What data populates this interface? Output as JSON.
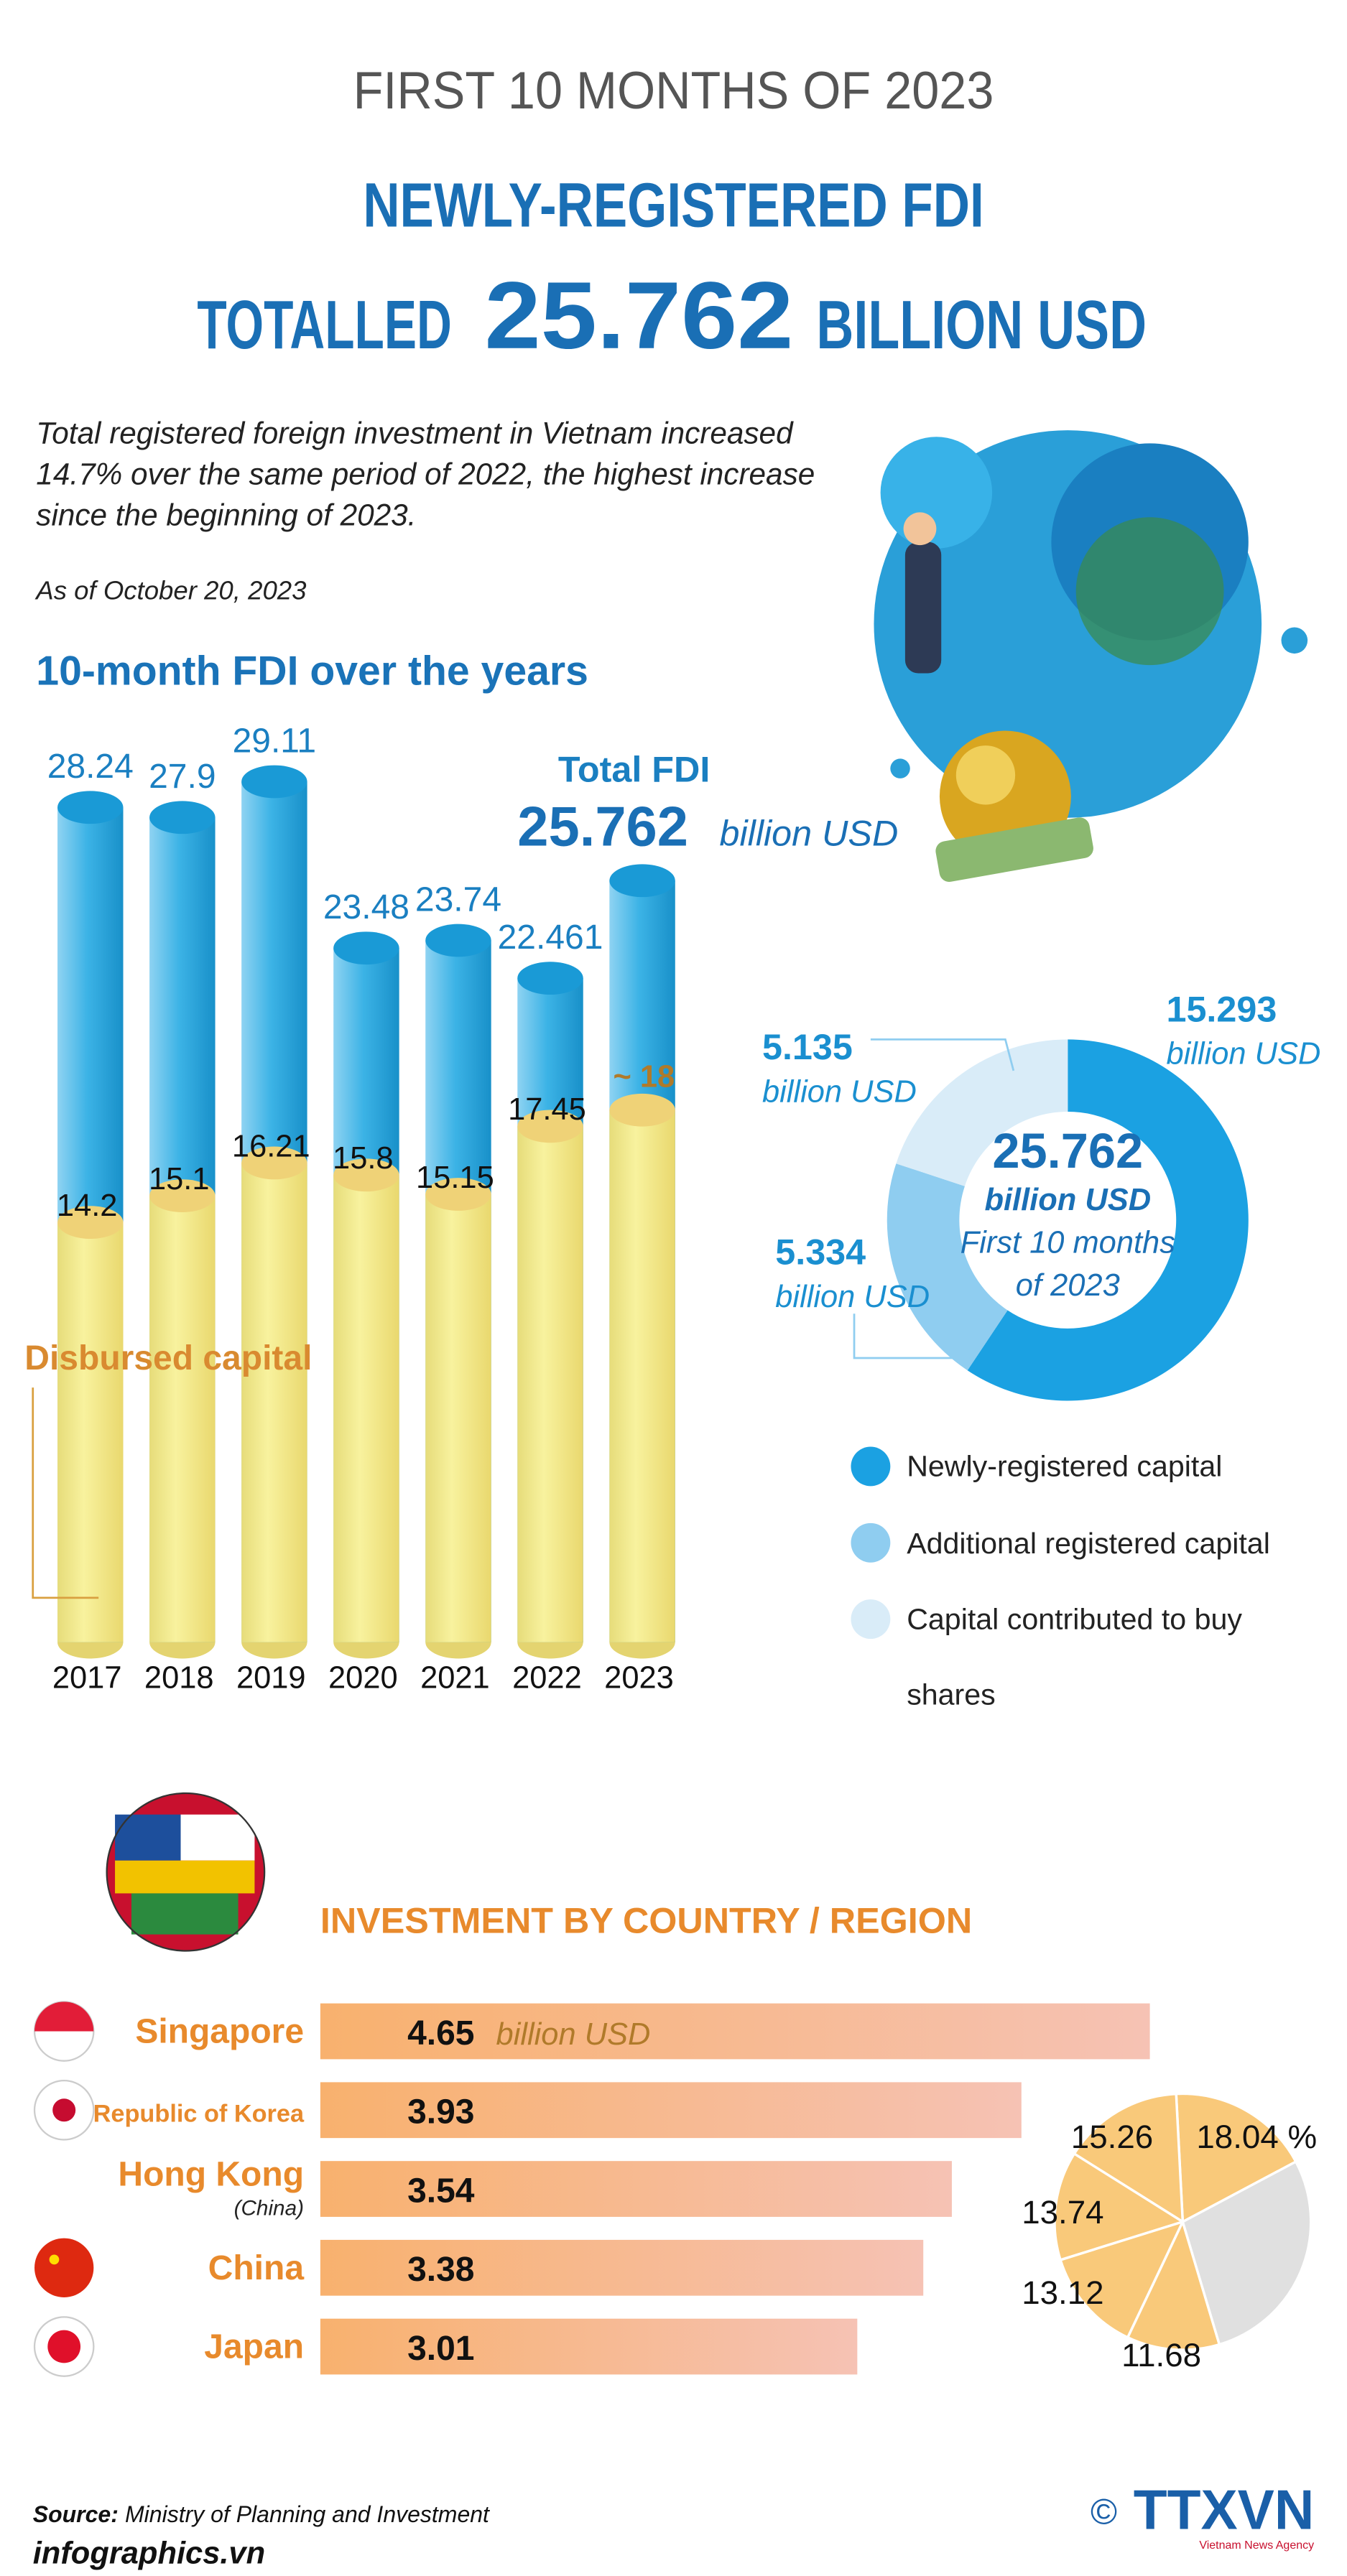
{
  "header": {
    "kicker": "FIRST 10 MONTHS OF 2023",
    "title": "NEWLY-REGISTERED FDI",
    "title_prefix": "TOTALLED",
    "title_amount": "25.762",
    "title_unit": "BILLION USD"
  },
  "intro": {
    "lines": [
      "Total registered foreign investment in Vietnam increased",
      "14.7% over the same period of 2022, the highest increase",
      "since the beginning of 2023."
    ],
    "date": "As of October 20, 2023"
  },
  "chart_data": [
    {
      "type": "cylinder",
      "title": "10-month FDI over the years",
      "categories": [
        "2017",
        "2018",
        "2019",
        "2020",
        "2021",
        "2022",
        "2023"
      ],
      "series": [
        {
          "name": "Total FDI",
          "color": "#29a9e0",
          "values": [
            28.24,
            27.9,
            29.11,
            23.48,
            23.74,
            22.461,
            25.762
          ]
        },
        {
          "name": "Disbursed capital",
          "color": "#f3ea8f",
          "values": [
            14.2,
            15.1,
            16.21,
            15.8,
            15.15,
            17.45,
            18
          ],
          "value_labels": [
            "14.2",
            "15.1",
            "16.21",
            "15.8",
            "15.15",
            "17.45",
            "~ 18"
          ]
        }
      ],
      "annotation_unit": "billion USD"
    },
    {
      "type": "donut",
      "total": "25.762",
      "unit": "billion USD",
      "center_note": [
        "First 10 months",
        "of 2023"
      ],
      "categories": [
        "Newly-registered capital",
        "Additional registered capital",
        "Capital contributed to buy shares"
      ],
      "colors": [
        "#1ba1e2",
        "#8fcdf0",
        "#d9ecf8"
      ],
      "values": [
        15.293,
        5.334,
        5.135
      ]
    },
    {
      "type": "hbar",
      "title": "INVESTMENT BY COUNTRY / REGION",
      "categories": [
        "Singapore",
        "Republic of Korea",
        "Hong Kong",
        "China",
        "Japan"
      ],
      "category_notes": [
        null,
        null,
        "(China)",
        null,
        null
      ],
      "values": [
        4.65,
        3.93,
        3.54,
        3.38,
        3.01
      ],
      "unit": "billion USD",
      "color": "#f7b27c",
      "share": {
        "values": [
          18.04,
          15.26,
          13.74,
          13.12,
          11.68
        ],
        "value_labels": [
          "18.04 %",
          "15.26",
          "13.74",
          "13.12",
          "11.68"
        ],
        "color": "#f9c97a",
        "rest_color": "#e0e0e0"
      }
    }
  ],
  "footer": {
    "source_label": "Source:",
    "source": "Ministry of Planning and Investment",
    "site": "infographics.vn",
    "copyright": "©",
    "agency": "TTXVN",
    "agency_name": "Vietnam News Agency"
  }
}
